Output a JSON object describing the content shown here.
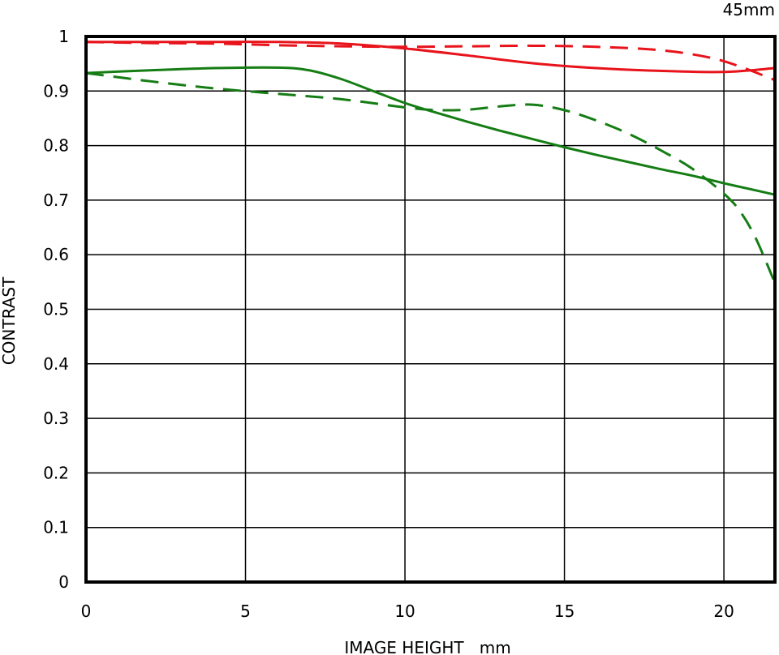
{
  "chart_data": {
    "type": "line",
    "title": "45mm",
    "xlabel": "IMAGE HEIGHT   mm",
    "ylabel": "CONTRAST",
    "xlim": [
      0,
      21.6
    ],
    "ylim": [
      0,
      1
    ],
    "xticks": [
      0,
      5,
      10,
      15,
      20
    ],
    "yticks": [
      0,
      0.1,
      0.2,
      0.3,
      0.4,
      0.5,
      0.6,
      0.7,
      0.8,
      0.9,
      1
    ],
    "xtick_labels": [
      "0",
      "5",
      "10",
      "15",
      "20"
    ],
    "ytick_labels": [
      "0",
      "0.1",
      "0.2",
      "0.3",
      "0.4",
      "0.5",
      "0.6",
      "0.7",
      "0.8",
      "0.9",
      "1"
    ],
    "grid": true,
    "series": [
      {
        "color": "#e8131b",
        "dash": "solid",
        "x": [
          0,
          2,
          4,
          6,
          8,
          10,
          12,
          14,
          16,
          18,
          20,
          21.6
        ],
        "y": [
          0.99,
          0.99,
          0.99,
          0.99,
          0.987,
          0.978,
          0.965,
          0.951,
          0.942,
          0.937,
          0.935,
          0.942
        ]
      },
      {
        "color": "#e8131b",
        "dash": "dashed",
        "x": [
          0,
          2,
          4,
          6,
          8,
          10,
          12,
          14,
          16,
          18,
          19.5,
          20.5,
          21.6
        ],
        "y": [
          0.99,
          0.988,
          0.987,
          0.984,
          0.982,
          0.981,
          0.982,
          0.983,
          0.981,
          0.975,
          0.962,
          0.945,
          0.92
        ]
      },
      {
        "color": "#157d14",
        "dash": "solid",
        "x": [
          0,
          2,
          4,
          6,
          7,
          8,
          9,
          10,
          11,
          12,
          13,
          14,
          15,
          16,
          17,
          18,
          19,
          20,
          21,
          21.6
        ],
        "y": [
          0.933,
          0.938,
          0.942,
          0.943,
          0.938,
          0.922,
          0.9,
          0.878,
          0.86,
          0.843,
          0.827,
          0.812,
          0.797,
          0.783,
          0.77,
          0.757,
          0.745,
          0.731,
          0.718,
          0.71
        ]
      },
      {
        "color": "#157d14",
        "dash": "dashed",
        "x": [
          0,
          2,
          4,
          6,
          8,
          10,
          11,
          12,
          13,
          14,
          15,
          16,
          17,
          18,
          19,
          20,
          20.5,
          21,
          21.6
        ],
        "y": [
          0.933,
          0.918,
          0.905,
          0.895,
          0.885,
          0.87,
          0.865,
          0.866,
          0.872,
          0.875,
          0.865,
          0.846,
          0.822,
          0.792,
          0.758,
          0.712,
          0.68,
          0.63,
          0.548
        ]
      }
    ]
  }
}
